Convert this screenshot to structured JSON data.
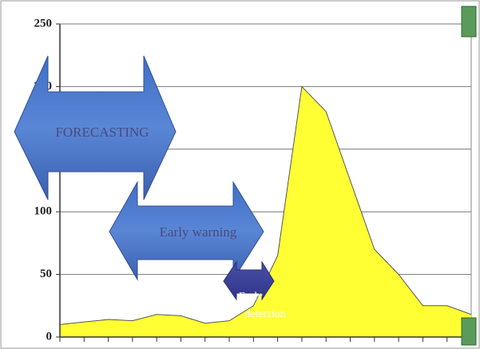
{
  "chart_data": {
    "type": "area",
    "categories": [
      null,
      null,
      null,
      null,
      null,
      null,
      null,
      null,
      null,
      null,
      null,
      null,
      null,
      null,
      null,
      null,
      null,
      null
    ],
    "values": [
      10,
      12,
      14,
      13,
      18,
      17,
      11,
      13,
      25,
      65,
      200,
      180,
      125,
      70,
      50,
      25,
      25,
      18
    ],
    "color": "#ffff33",
    "ylim": [
      0,
      250
    ],
    "yticks": [
      0,
      50,
      100,
      150,
      200,
      250
    ],
    "grid": true,
    "annotations": [
      "FORECASTING",
      "Early warning",
      "Early detection"
    ]
  }
}
